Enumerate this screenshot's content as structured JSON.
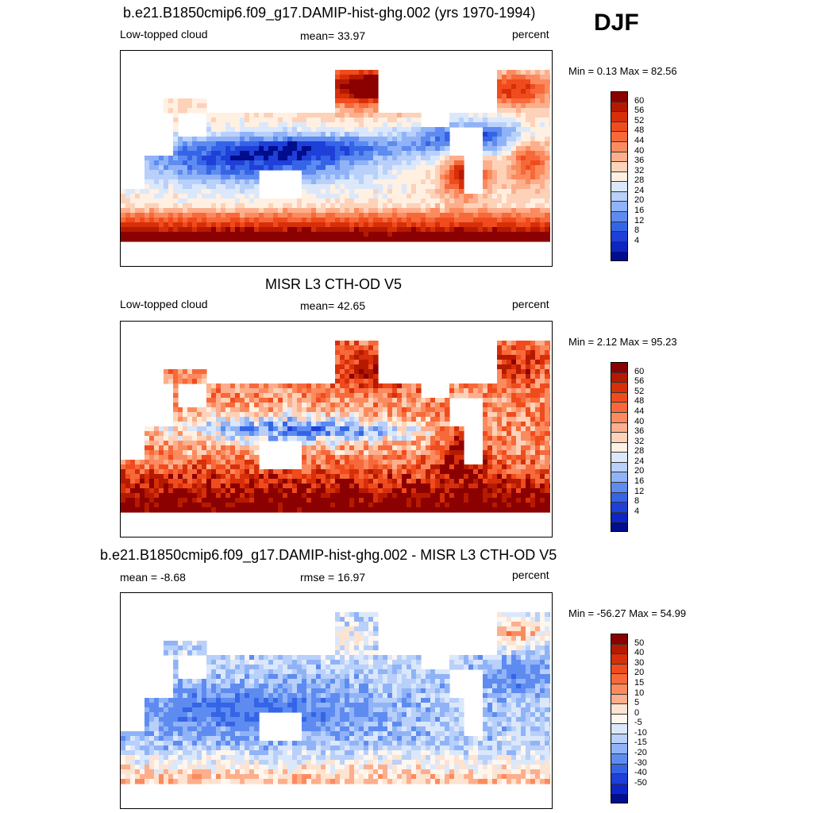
{
  "season": "DJF",
  "panels": [
    {
      "title": "b.e21.B1850cmip6.f09_g17.DAMIP-hist-ghg.002 (yrs 1970-1994)",
      "left_label": "Low-topped cloud",
      "center_label": "mean=  33.97",
      "right_label": "percent",
      "minmax": "Min =   0.13 Max =  82.56",
      "colorbar_labels": [
        "60",
        "56",
        "52",
        "48",
        "44",
        "40",
        "36",
        "32",
        "28",
        "24",
        "20",
        "16",
        "12",
        "8",
        "4"
      ],
      "colorbar_colors": [
        "#8b0000",
        "#b51a00",
        "#d62f0a",
        "#f04b1d",
        "#f7693a",
        "#fb8b5e",
        "#fdae8c",
        "#fdd2b8",
        "#fff0e2",
        "#dbe8fb",
        "#b8d0fa",
        "#90b3f7",
        "#5e8bf0",
        "#3565e6",
        "#1f3fd9",
        "#0d25c4",
        "#000d8c"
      ],
      "cmap": "seq"
    },
    {
      "title": "MISR L3 CTH-OD V5",
      "left_label": "Low-topped cloud",
      "center_label": "mean=  42.65",
      "right_label": "percent",
      "minmax": "Min =   2.12 Max =  95.23",
      "colorbar_labels": [
        "60",
        "56",
        "52",
        "48",
        "44",
        "40",
        "36",
        "32",
        "28",
        "24",
        "20",
        "16",
        "12",
        "8",
        "4"
      ],
      "colorbar_colors": [
        "#8b0000",
        "#b51a00",
        "#d62f0a",
        "#f04b1d",
        "#f7693a",
        "#fb8b5e",
        "#fdae8c",
        "#fdd2b8",
        "#fff0e2",
        "#dbe8fb",
        "#b8d0fa",
        "#90b3f7",
        "#5e8bf0",
        "#3565e6",
        "#1f3fd9",
        "#0d25c4",
        "#000d8c"
      ],
      "cmap": "seq"
    },
    {
      "title": "b.e21.B1850cmip6.f09_g17.DAMIP-hist-ghg.002 - MISR L3 CTH-OD V5",
      "left_label": "mean =  -8.68",
      "center_label": "rmse =  16.97",
      "right_label": "percent",
      "minmax": "Min = -56.27 Max =  54.99",
      "colorbar_labels": [
        "50",
        "40",
        "30",
        "20",
        "15",
        "10",
        "5",
        "0",
        "-5",
        "-10",
        "-15",
        "-20",
        "-30",
        "-40",
        "-50"
      ],
      "colorbar_colors": [
        "#8b0000",
        "#b51a00",
        "#d62f0a",
        "#f04b1d",
        "#f7693a",
        "#fb8b5e",
        "#fdae8c",
        "#fde3d0",
        "#fff6ee",
        "#dbe8fb",
        "#b8d0fa",
        "#90b3f7",
        "#5e8bf0",
        "#3565e6",
        "#1f3fd9",
        "#0d25c4",
        "#000d8c"
      ],
      "cmap": "div"
    }
  ]
}
